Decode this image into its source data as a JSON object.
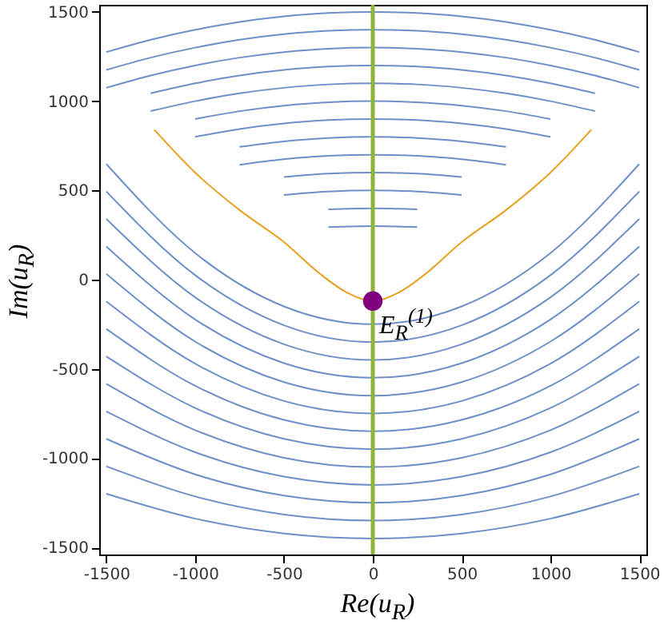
{
  "chart_data": {
    "type": "line",
    "xlabel": "Re(u$_{R}$)",
    "ylabel": "Im(u$_{R}$)",
    "xlim": [
      -1540,
      1540
    ],
    "ylim": [
      -1540,
      1540
    ],
    "xticks": [
      -1500,
      -1000,
      -500,
      0,
      500,
      1000,
      1500
    ],
    "yticks": [
      -1500,
      -1000,
      -500,
      0,
      500,
      1000,
      1500
    ],
    "grid": false,
    "x": [
      -1500,
      -1000,
      -500,
      0,
      500,
      1000,
      1500
    ],
    "series": [
      {
        "color": "#6f8fc9",
        "values": [
          -1200,
          -1339,
          -1422,
          -1450,
          -1422,
          -1339,
          -1200
        ]
      },
      {
        "color": "#6f8fc9",
        "values": [
          -1046,
          -1215,
          -1316,
          -1350,
          -1316,
          -1215,
          -1046
        ]
      },
      {
        "color": "#6f8fc9",
        "values": [
          -892,
          -1091,
          -1210,
          -1250,
          -1210,
          -1091,
          -892
        ]
      },
      {
        "color": "#6f8fc9",
        "values": [
          -738,
          -967,
          -1104,
          -1150,
          -1104,
          -967,
          -738
        ]
      },
      {
        "color": "#6f8fc9",
        "values": [
          -584,
          -843,
          -998,
          -1050,
          -998,
          -843,
          -584
        ]
      },
      {
        "color": "#6f8fc9",
        "values": [
          -430,
          -719,
          -892,
          -950,
          -892,
          -719,
          -430
        ]
      },
      {
        "color": "#6f8fc9",
        "values": [
          -276,
          -595,
          -786,
          -850,
          -786,
          -595,
          -276
        ]
      },
      {
        "color": "#6f8fc9",
        "values": [
          -122,
          -471,
          -680,
          -750,
          -680,
          -471,
          -122
        ]
      },
      {
        "color": "#6f8fc9",
        "values": [
          32,
          -347,
          -574,
          -650,
          -574,
          -347,
          32
        ]
      },
      {
        "color": "#6f8fc9",
        "values": [
          186,
          -223,
          -468,
          -550,
          -468,
          -223,
          186
        ]
      },
      {
        "color": "#6f8fc9",
        "values": [
          340,
          -99,
          -362,
          -450,
          -362,
          -99,
          340
        ]
      },
      {
        "color": "#6f8fc9",
        "values": [
          494,
          25,
          -256,
          -350,
          -256,
          25,
          494
        ]
      },
      {
        "color": "#6f8fc9",
        "values": [
          648,
          149,
          -150,
          -250,
          -150,
          149,
          648
        ]
      },
      {
        "color": "#6f8fc9",
        "x": [
          -1500,
          -1250,
          -1000,
          -750,
          -500,
          -250,
          0,
          250,
          500,
          750,
          1000,
          1250,
          1500
        ],
        "values": [
          1275,
          1344,
          1400,
          1444,
          1475,
          1494,
          1500,
          1494,
          1475,
          1444,
          1400,
          1344,
          1275
        ]
      },
      {
        "color": "#6f8fc9",
        "x": [
          -1500,
          -1250,
          -1000,
          -750,
          -500,
          -250,
          0,
          250,
          500,
          750,
          1000,
          1250,
          1500
        ],
        "values": [
          1175,
          1244,
          1300,
          1344,
          1375,
          1394,
          1400,
          1394,
          1375,
          1344,
          1300,
          1244,
          1175
        ]
      },
      {
        "color": "#6f8fc9",
        "x": [
          -1500,
          -1250,
          -1000,
          -750,
          -500,
          -250,
          0,
          250,
          500,
          750,
          1000,
          1250,
          1500
        ],
        "values": [
          1075,
          1144,
          1200,
          1244,
          1275,
          1294,
          1300,
          1294,
          1275,
          1244,
          1200,
          1144,
          1075
        ]
      },
      {
        "color": "#6f8fc9",
        "x": [
          -1250,
          -1000,
          -750,
          -500,
          -250,
          0,
          250,
          500,
          750,
          1000,
          1250
        ],
        "values": [
          1044,
          1100,
          1144,
          1175,
          1194,
          1200,
          1194,
          1175,
          1144,
          1100,
          1044
        ]
      },
      {
        "color": "#6f8fc9",
        "x": [
          -1250,
          -1000,
          -750,
          -500,
          -250,
          0,
          250,
          500,
          750,
          1000,
          1250
        ],
        "values": [
          944,
          1000,
          1044,
          1075,
          1094,
          1100,
          1094,
          1075,
          1044,
          1000,
          944
        ]
      },
      {
        "color": "#6f8fc9",
        "x": [
          -1000,
          -750,
          -500,
          -250,
          0,
          250,
          500,
          750,
          1000
        ],
        "values": [
          900,
          944,
          975,
          994,
          1000,
          994,
          975,
          944,
          900
        ]
      },
      {
        "color": "#6f8fc9",
        "x": [
          -1000,
          -750,
          -500,
          -250,
          0,
          250,
          500,
          750,
          1000
        ],
        "values": [
          800,
          844,
          875,
          894,
          900,
          894,
          875,
          844,
          800
        ]
      },
      {
        "color": "#6f8fc9",
        "x": [
          -750,
          -500,
          -250,
          0,
          250,
          500,
          750
        ],
        "values": [
          744,
          775,
          794,
          800,
          794,
          775,
          744
        ]
      },
      {
        "color": "#6f8fc9",
        "x": [
          -750,
          -500,
          -250,
          0,
          250,
          500,
          750
        ],
        "values": [
          644,
          675,
          694,
          700,
          694,
          675,
          644
        ]
      },
      {
        "color": "#6f8fc9",
        "x": [
          -500,
          -250,
          0,
          250,
          500
        ],
        "values": [
          575,
          594,
          600,
          594,
          575
        ]
      },
      {
        "color": "#6f8fc9",
        "x": [
          -500,
          -250,
          0,
          250,
          500
        ],
        "values": [
          475,
          494,
          500,
          494,
          475
        ]
      },
      {
        "color": "#6f8fc9",
        "x": [
          -250,
          0,
          250
        ],
        "values": [
          394,
          400,
          394
        ]
      },
      {
        "color": "#6f8fc9",
        "x": [
          -250,
          0,
          250
        ],
        "values": [
          294,
          300,
          294
        ]
      },
      {
        "color": "#e8a020",
        "x": [
          -1230,
          -1000,
          -750,
          -500,
          -300,
          -150,
          0,
          150,
          300,
          500,
          750,
          1000,
          1230
        ],
        "values": [
          840,
          600,
          390,
          210,
          35,
          -70,
          -120,
          -70,
          35,
          210,
          390,
          600,
          840
        ]
      },
      {
        "type": "scatter",
        "color": "#800080",
        "x": [
          0
        ],
        "values": [
          -120
        ]
      }
    ],
    "ref_lines": [
      {
        "axis": "x",
        "value": 0,
        "color": "#8db33a"
      }
    ],
    "annotations": [
      {
        "text": "E$_{R}$$^{(1)}$",
        "x": 0,
        "y": -120
      }
    ]
  }
}
